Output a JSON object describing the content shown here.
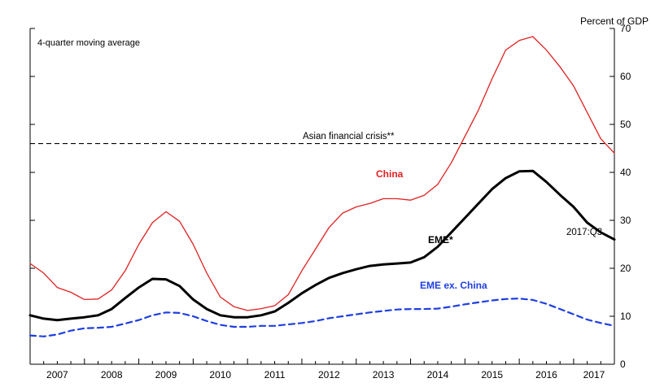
{
  "chart_data": {
    "type": "line",
    "subtitle": "4-quarter moving average",
    "ylabel": "Percent of GDP",
    "ylim": [
      0,
      70
    ],
    "yticks": [
      0,
      10,
      20,
      30,
      40,
      50,
      60,
      70
    ],
    "xlim": [
      2007.0,
      2017.75
    ],
    "years": [
      "2007",
      "2008",
      "2009",
      "2010",
      "2011",
      "2012",
      "2013",
      "2014",
      "2015",
      "2016",
      "2017"
    ],
    "reference_line": {
      "label": "Asian financial crisis**",
      "value": 46
    },
    "end_annotation": "2017:Q3",
    "series": [
      {
        "name": "China",
        "label": "China",
        "color": "#e02020",
        "style": "solid",
        "x": [
          2007.0,
          2007.25,
          2007.5,
          2007.75,
          2008.0,
          2008.25,
          2008.5,
          2008.75,
          2009.0,
          2009.25,
          2009.5,
          2009.75,
          2010.0,
          2010.25,
          2010.5,
          2010.75,
          2011.0,
          2011.25,
          2011.5,
          2011.75,
          2012.0,
          2012.25,
          2012.5,
          2012.75,
          2013.0,
          2013.25,
          2013.5,
          2013.75,
          2014.0,
          2014.25,
          2014.5,
          2014.75,
          2015.0,
          2015.25,
          2015.5,
          2015.75,
          2016.0,
          2016.25,
          2016.5,
          2016.75,
          2017.0,
          2017.25,
          2017.5,
          2017.75
        ],
        "values": [
          21.0,
          19.0,
          16.0,
          15.0,
          13.5,
          13.6,
          15.5,
          19.5,
          25.0,
          29.5,
          31.8,
          29.8,
          25.0,
          19.0,
          14.0,
          12.0,
          11.2,
          11.6,
          12.2,
          14.5,
          19.5,
          24.0,
          28.5,
          31.5,
          32.8,
          33.5,
          34.5,
          34.5,
          34.2,
          35.2,
          37.5,
          42.0,
          47.5,
          53.0,
          59.5,
          65.5,
          67.5,
          68.3,
          65.5,
          62.0,
          58.0,
          52.5,
          47.0,
          44.0
        ]
      },
      {
        "name": "EME",
        "label": "EME*",
        "color": "#000000",
        "style": "solid",
        "x": [
          2007.0,
          2007.25,
          2007.5,
          2007.75,
          2008.0,
          2008.25,
          2008.5,
          2008.75,
          2009.0,
          2009.25,
          2009.5,
          2009.75,
          2010.0,
          2010.25,
          2010.5,
          2010.75,
          2011.0,
          2011.25,
          2011.5,
          2011.75,
          2012.0,
          2012.25,
          2012.5,
          2012.75,
          2013.0,
          2013.25,
          2013.5,
          2013.75,
          2014.0,
          2014.25,
          2014.5,
          2014.75,
          2015.0,
          2015.25,
          2015.5,
          2015.75,
          2016.0,
          2016.25,
          2016.5,
          2016.75,
          2017.0,
          2017.25,
          2017.5,
          2017.75
        ],
        "values": [
          10.2,
          9.5,
          9.2,
          9.5,
          9.8,
          10.2,
          11.5,
          13.8,
          16.0,
          17.8,
          17.7,
          16.3,
          13.5,
          11.5,
          10.2,
          9.8,
          9.8,
          10.2,
          11.0,
          12.8,
          14.8,
          16.5,
          18.0,
          19.0,
          19.8,
          20.5,
          20.8,
          21.0,
          21.2,
          22.3,
          24.5,
          27.5,
          30.5,
          33.5,
          36.5,
          38.8,
          40.2,
          40.3,
          38.0,
          35.3,
          32.8,
          29.5,
          27.5,
          26.0
        ]
      },
      {
        "name": "EME ex. China",
        "label": "EME ex. China",
        "color": "#1f3fe0",
        "style": "dashed",
        "x": [
          2007.0,
          2007.25,
          2007.5,
          2007.75,
          2008.0,
          2008.25,
          2008.5,
          2008.75,
          2009.0,
          2009.25,
          2009.5,
          2009.75,
          2010.0,
          2010.25,
          2010.5,
          2010.75,
          2011.0,
          2011.25,
          2011.5,
          2011.75,
          2012.0,
          2012.25,
          2012.5,
          2012.75,
          2013.0,
          2013.25,
          2013.5,
          2013.75,
          2014.0,
          2014.25,
          2014.5,
          2014.75,
          2015.0,
          2015.25,
          2015.5,
          2015.75,
          2016.0,
          2016.25,
          2016.5,
          2016.75,
          2017.0,
          2017.25,
          2017.5,
          2017.75
        ],
        "values": [
          6.0,
          5.8,
          6.2,
          7.0,
          7.5,
          7.6,
          7.8,
          8.5,
          9.2,
          10.2,
          10.8,
          10.7,
          10.0,
          9.0,
          8.2,
          7.8,
          7.8,
          8.0,
          8.0,
          8.3,
          8.6,
          9.0,
          9.6,
          10.0,
          10.4,
          10.8,
          11.1,
          11.4,
          11.5,
          11.5,
          11.6,
          12.0,
          12.5,
          12.9,
          13.3,
          13.6,
          13.7,
          13.4,
          12.6,
          11.5,
          10.4,
          9.3,
          8.6,
          8.0
        ]
      }
    ]
  }
}
